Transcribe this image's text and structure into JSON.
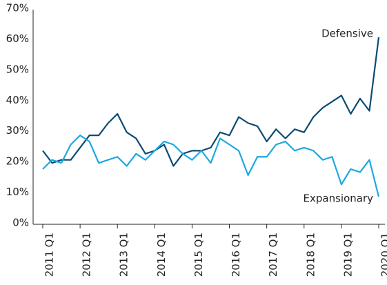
{
  "chart_data": {
    "type": "line",
    "categories": [
      "2011 Q1",
      null,
      null,
      null,
      "2012 Q1",
      null,
      null,
      null,
      "2013 Q1",
      null,
      null,
      null,
      "2014 Q1",
      null,
      null,
      null,
      "2015 Q1",
      null,
      null,
      null,
      "2016 Q1",
      null,
      null,
      null,
      "2017 Q1",
      null,
      null,
      null,
      "2018 Q1",
      null,
      null,
      null,
      "2019 Q1",
      null,
      null,
      null,
      "2020 Q1"
    ],
    "series": [
      {
        "name": "Defensive",
        "color": "#0b4a72",
        "values": [
          24,
          20,
          21,
          21,
          25,
          29,
          29,
          33,
          36,
          30,
          28,
          23,
          24,
          26,
          19,
          23,
          24,
          24,
          25,
          30,
          29,
          35,
          33,
          32,
          27,
          31,
          28,
          31,
          30,
          35,
          38,
          40,
          42,
          36,
          41,
          37,
          61
        ]
      },
      {
        "name": "Expansionary",
        "color": "#1ba8e0",
        "values": [
          18,
          21,
          20,
          26,
          29,
          27,
          20,
          21,
          22,
          19,
          23,
          21,
          24,
          27,
          26,
          23,
          21,
          24,
          20,
          28,
          26,
          24,
          16,
          22,
          22,
          26,
          27,
          24,
          25,
          24,
          21,
          22,
          13,
          18,
          17,
          21,
          9
        ]
      }
    ],
    "ylim": [
      0,
      70
    ],
    "yticks": [
      {
        "value": 0,
        "label": "0%"
      },
      {
        "value": 10,
        "label": "10%"
      },
      {
        "value": 20,
        "label": "20%"
      },
      {
        "value": 30,
        "label": "30%"
      },
      {
        "value": 40,
        "label": "40%"
      },
      {
        "value": 50,
        "label": "50%"
      },
      {
        "value": 60,
        "label": "60%"
      },
      {
        "value": 70,
        "label": "70%"
      }
    ],
    "grid": false
  }
}
